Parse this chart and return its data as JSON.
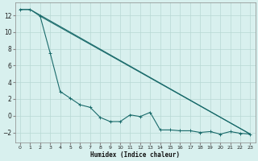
{
  "title": "",
  "xlabel": "Humidex (Indice chaleur)",
  "ylabel": "",
  "background_color": "#d8f0ee",
  "grid_color": "#b8d8d4",
  "line_color": "#1a6b6b",
  "xlim": [
    -0.5,
    23.5
  ],
  "ylim": [
    -3.2,
    13.5
  ],
  "xticks": [
    0,
    1,
    2,
    3,
    4,
    5,
    6,
    7,
    8,
    9,
    10,
    11,
    12,
    13,
    14,
    15,
    16,
    17,
    18,
    19,
    20,
    21,
    22,
    23
  ],
  "yticks": [
    -2,
    0,
    2,
    4,
    6,
    8,
    10,
    12
  ],
  "series1_x": [
    0,
    1,
    2,
    3,
    4,
    5,
    6,
    7,
    8,
    9,
    10,
    11,
    12,
    13,
    14,
    15,
    16,
    17,
    18,
    19,
    20,
    21,
    22,
    23
  ],
  "series1_y": [
    12.7,
    12.7,
    11.9,
    7.5,
    2.9,
    2.1,
    1.3,
    1.0,
    -0.2,
    -0.7,
    -0.7,
    0.1,
    -0.1,
    0.4,
    -1.7,
    -1.7,
    -1.8,
    -1.8,
    -2.0,
    -1.9,
    -2.2,
    -1.9,
    -2.1,
    -2.2
  ],
  "series2_x": [
    0,
    1,
    23
  ],
  "series2_y": [
    12.7,
    12.7,
    -2.2
  ],
  "series3_x": [
    2,
    23
  ],
  "series3_y": [
    11.9,
    -2.2
  ]
}
